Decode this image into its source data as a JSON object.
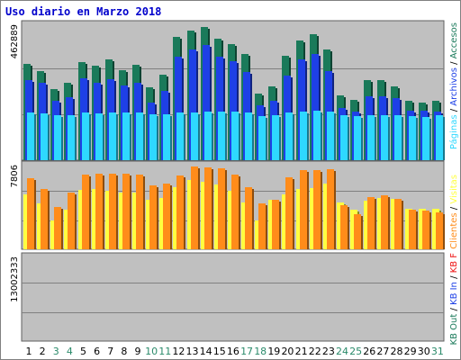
{
  "title": "Uso diario en Marzo 2018",
  "colors": {
    "panel_bg": "#c0c0c0",
    "grid": "#808080",
    "visitas": "#1a7a5a",
    "paginas": "#1e40e6",
    "solicitudes": "#2ed8ff",
    "visitantes": "#ffff40",
    "kbf": "#ff8c1a",
    "kb_red": "#ee1111",
    "weekday_label": "#000000",
    "weekend_label": "#2a8a6a"
  },
  "legend": {
    "visitas": "Accesos",
    "sep1": " / ",
    "paginas": "Archivos",
    "sep2": " / ",
    "solicitudes": "Páginas",
    "sep3": " / ",
    "visitantes": "Visitas",
    "sep4": " / ",
    "kbf": "Clientes",
    "sep5": " / ",
    "kbin": "KB In",
    "sep6": " / ",
    "kbout": "KB Out",
    "sep7": " / ",
    "kb": "KB F"
  },
  "chart_data": [
    {
      "type": "bar",
      "panel": "top",
      "ymax_label": "462889",
      "ymax": 462889,
      "x": [
        "1",
        "2",
        "3",
        "4",
        "5",
        "6",
        "7",
        "8",
        "9",
        "10",
        "11",
        "12",
        "13",
        "14",
        "15",
        "16",
        "17",
        "18",
        "19",
        "20",
        "21",
        "22",
        "23",
        "24",
        "25",
        "26",
        "27",
        "28",
        "29",
        "30",
        "31"
      ],
      "series": [
        {
          "name": "Accesos",
          "values": [
            325000,
            300000,
            240000,
            262000,
            333000,
            320000,
            340000,
            306000,
            322000,
            246000,
            289000,
            416000,
            438000,
            452000,
            411000,
            393000,
            359000,
            226000,
            249000,
            354000,
            406000,
            426000,
            376000,
            218000,
            203000,
            271000,
            271000,
            250000,
            202000,
            196000,
            201000
          ]
        },
        {
          "name": "Archivos",
          "values": [
            270000,
            262000,
            200000,
            214000,
            277000,
            262000,
            274000,
            252000,
            262000,
            196000,
            233000,
            349000,
            374000,
            389000,
            350000,
            334000,
            298000,
            186000,
            202000,
            287000,
            340000,
            359000,
            302000,
            177000,
            163000,
            216000,
            216000,
            209000,
            169000,
            168000,
            165000
          ]
        },
        {
          "name": "Páginas",
          "values": [
            161000,
            159000,
            153000,
            151000,
            161000,
            159000,
            162000,
            160000,
            160000,
            154000,
            156000,
            160000,
            162000,
            164000,
            163000,
            163000,
            160000,
            149000,
            151000,
            162000,
            164000,
            166000,
            165000,
            151000,
            148000,
            152000,
            152000,
            151000,
            149000,
            147000,
            151000
          ]
        }
      ]
    },
    {
      "type": "bar",
      "panel": "middle",
      "ymax_label": "7806",
      "ymax": 7806,
      "x": [
        "1",
        "2",
        "3",
        "4",
        "5",
        "6",
        "7",
        "8",
        "9",
        "10",
        "11",
        "12",
        "13",
        "14",
        "15",
        "16",
        "17",
        "18",
        "19",
        "20",
        "21",
        "22",
        "23",
        "24",
        "25",
        "26",
        "27",
        "28",
        "29",
        "30",
        "31"
      ],
      "series": [
        {
          "name": "Visitas",
          "values": [
            5000,
            4200,
            2600,
            3600,
            5400,
            5500,
            5300,
            5200,
            5200,
            4500,
            4700,
            5700,
            6300,
            6200,
            5900,
            5300,
            4300,
            2600,
            4500,
            5000,
            5500,
            5600,
            6000,
            4300,
            3600,
            4400,
            4700,
            4600,
            3700,
            3700,
            3700
          ]
        },
        {
          "name": "Clientes",
          "values": [
            6500,
            5500,
            3900,
            5200,
            6800,
            6900,
            6900,
            6900,
            6800,
            5800,
            6000,
            6700,
            7600,
            7500,
            7400,
            6800,
            5700,
            4200,
            4500,
            6600,
            7200,
            7200,
            7300,
            4000,
            3200,
            4800,
            4900,
            4600,
            3600,
            3500,
            3400
          ]
        }
      ]
    },
    {
      "type": "bar",
      "panel": "bottom",
      "ymax_label": "13002333",
      "ymax": 13002333,
      "x": [
        "1",
        "2",
        "3",
        "4",
        "5",
        "6",
        "7",
        "8",
        "9",
        "10",
        "11",
        "12",
        "13",
        "14",
        "15",
        "16",
        "17",
        "18",
        "19",
        "20",
        "21",
        "22",
        "23",
        "24",
        "25",
        "26",
        "27",
        "28",
        "29",
        "30",
        "31"
      ],
      "series": [
        {
          "name": "KB F",
          "values": [
            8500,
            7900,
            7300,
            6100,
            8600,
            8200,
            8500,
            8400,
            8100,
            6900,
            7300,
            11200,
            11900,
            13800,
            10700,
            9500,
            4300,
            6500,
            4600,
            9900,
            9500,
            12100,
            9900,
            8800,
            5200,
            4200,
            6300,
            7300,
            5300,
            4800,
            4800
          ]
        }
      ]
    }
  ]
}
